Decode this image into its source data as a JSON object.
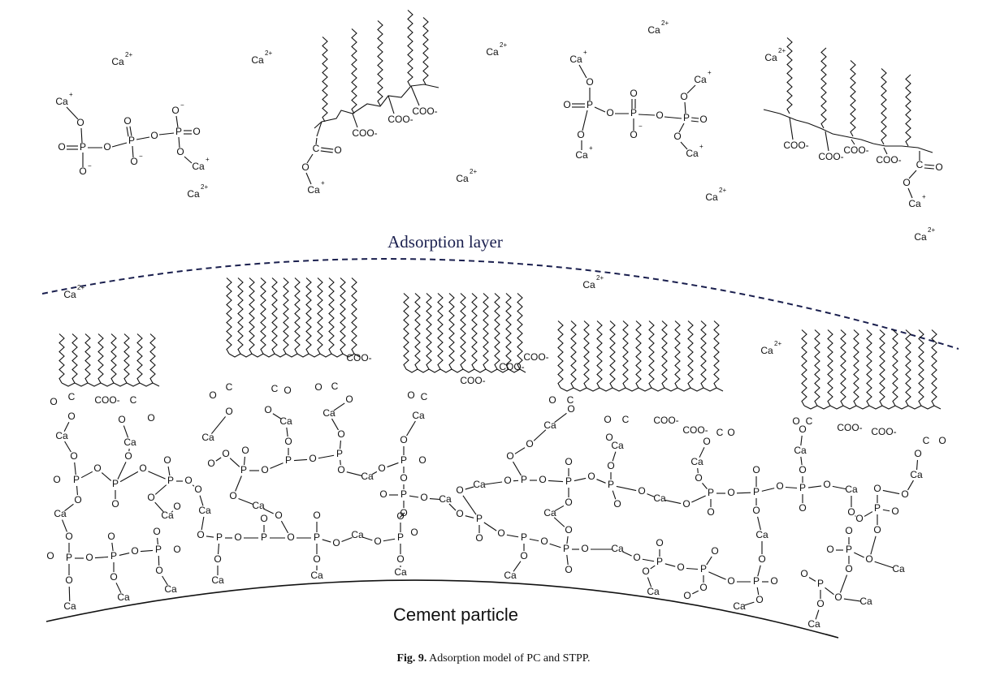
{
  "labels": {
    "adsorption_layer": "Adsorption layer",
    "cement_particle": "Cement particle"
  },
  "caption": {
    "prefix": "Fig. 9.",
    "text": "Adsorption model of PC and STPP."
  },
  "ion_labels": {
    "ca": "Ca",
    "two_plus": "2+",
    "plus": "+",
    "minus": "−"
  },
  "chem_text": {
    "coo": "COO-",
    "o": "O",
    "p": "P",
    "ca": "Ca",
    "c": "C"
  },
  "colors": {
    "adsorption_line": "#1a1f4e",
    "ink": "#111111"
  }
}
